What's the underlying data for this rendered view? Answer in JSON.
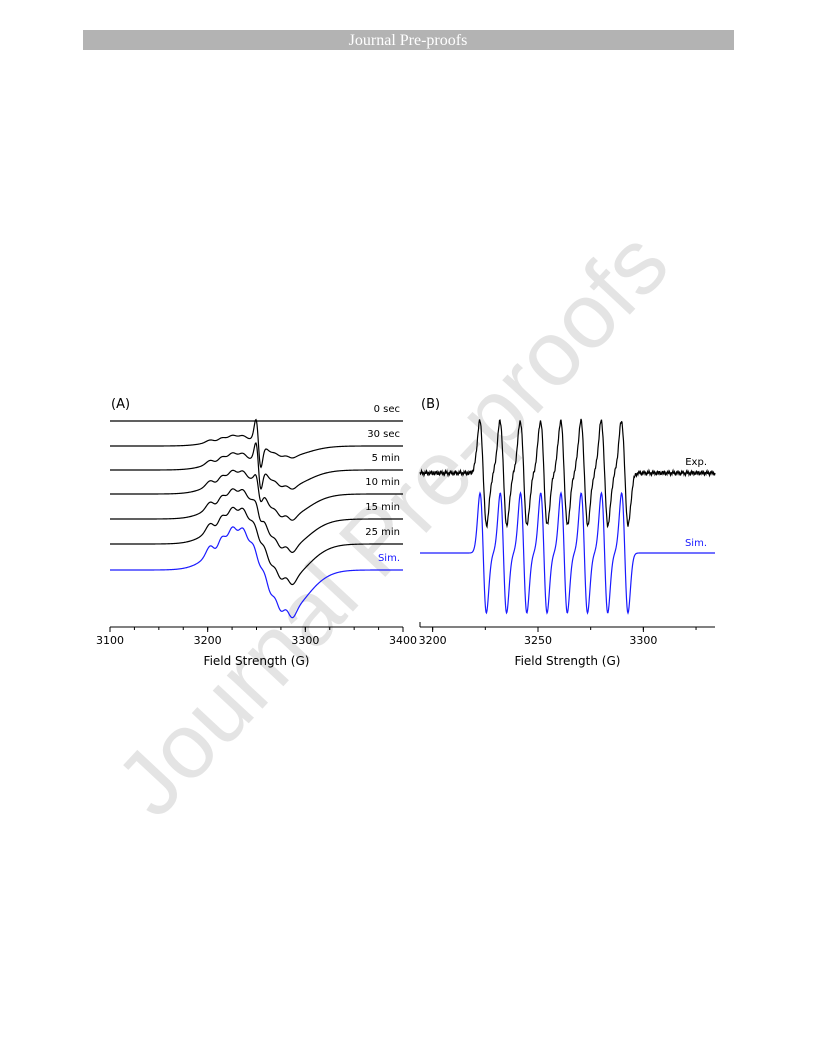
{
  "header": "Journal Pre-proofs",
  "watermark": "Journal Pre-proofs",
  "chart_data": [
    {
      "type": "line",
      "panel_label": "(A)",
      "xlabel": "Field Strength (G)",
      "xlim": [
        3100,
        3400
      ],
      "xticks": [
        3100,
        3200,
        3300,
        3400
      ],
      "series": [
        {
          "name": "0 sec",
          "color": "#000000"
        },
        {
          "name": "30 sec",
          "color": "#000000"
        },
        {
          "name": "5 min",
          "color": "#000000"
        },
        {
          "name": "10 min",
          "color": "#000000"
        },
        {
          "name": "15 min",
          "color": "#000000"
        },
        {
          "name": "25 min",
          "color": "#000000"
        },
        {
          "name": "Sim.",
          "color": "#1a1aff"
        }
      ]
    },
    {
      "type": "line",
      "panel_label": "(B)",
      "xlabel": "Field Strength (G)",
      "xlim": [
        3194,
        3334
      ],
      "xticks": [
        3200,
        3250,
        3300
      ],
      "series": [
        {
          "name": "Exp.",
          "color": "#000000"
        },
        {
          "name": "Sim.",
          "color": "#1a1aff"
        }
      ]
    }
  ]
}
